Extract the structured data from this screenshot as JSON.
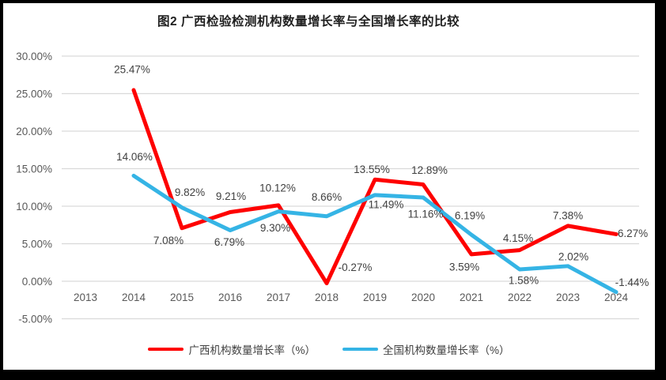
{
  "chart_data": {
    "type": "line",
    "title": "图2 广西检验检测机构数量增长率与全国增长率的比较",
    "xlabel": "",
    "ylabel": "",
    "categories": [
      "2013",
      "2014",
      "2015",
      "2016",
      "2017",
      "2018",
      "2019",
      "2020",
      "2021",
      "2022",
      "2023",
      "2024"
    ],
    "y_axis": {
      "min": -5,
      "max": 30,
      "step": 5,
      "tick_labels_top_to_bottom": [
        "30.00%",
        "25.00%",
        "20.00%",
        "15.00%",
        "10.00%",
        "5.00%",
        "0.00%",
        "-5.00%"
      ]
    },
    "grid": true,
    "legend_position": "bottom",
    "series": [
      {
        "name": "广西机构数量增长率（%）",
        "color": "#fe0000",
        "start_category_index": 1,
        "values": [
          25.47,
          7.08,
          9.21,
          10.12,
          -0.27,
          13.55,
          12.89,
          3.59,
          4.15,
          7.38,
          6.27
        ],
        "labels": [
          "25.47%",
          "7.08%",
          "9.21%",
          "10.12%",
          "-0.27%",
          "13.55%",
          "12.89%",
          "3.59%",
          "4.15%",
          "7.38%",
          "6.27%"
        ],
        "label_offsets": [
          [
            -2,
            -26
          ],
          [
            -17,
            16
          ],
          [
            1,
            -20
          ],
          [
            -1,
            -22
          ],
          [
            36,
            -20
          ],
          [
            -4,
            -13
          ],
          [
            8,
            -18
          ],
          [
            -9,
            16
          ],
          [
            -2,
            -15
          ],
          [
            0,
            -13
          ],
          [
            21,
            -1
          ]
        ]
      },
      {
        "name": "全国机构数量增长率（%）",
        "color": "#35b4e5",
        "start_category_index": 1,
        "values": [
          14.06,
          9.82,
          6.79,
          9.3,
          8.66,
          11.49,
          11.16,
          6.19,
          1.58,
          2.02,
          -1.44
        ],
        "labels": [
          "14.06%",
          "9.82%",
          "6.79%",
          "9.30%",
          "8.66%",
          "11.49%",
          "11.16%",
          "6.19%",
          "1.58%",
          "2.02%",
          "-1.44%"
        ],
        "label_offsets": [
          [
            1,
            -24
          ],
          [
            10,
            -19
          ],
          [
            -1,
            15
          ],
          [
            -4,
            21
          ],
          [
            0,
            -24
          ],
          [
            14,
            12
          ],
          [
            3,
            21
          ],
          [
            -2,
            -24
          ],
          [
            5,
            14
          ],
          [
            7,
            -12
          ],
          [
            20,
            -12
          ]
        ]
      }
    ],
    "style": {
      "grid_color": "#d9d9d9",
      "axis_text_color": "#595959",
      "data_label_color": "#404040",
      "line_width": 5
    }
  }
}
